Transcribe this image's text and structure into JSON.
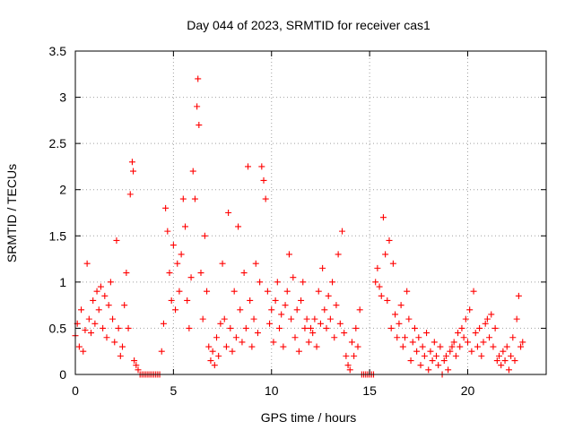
{
  "chart_data": {
    "type": "scatter",
    "title": "Day 044 of 2023, SRMTID for receiver cas1",
    "xlabel": "GPS time / hours",
    "ylabel": "SRMTID / TECUs",
    "xlim": [
      0,
      24
    ],
    "ylim": [
      0,
      3.5
    ],
    "x_ticks": [
      0,
      5,
      10,
      15,
      20
    ],
    "x_tick_labels": [
      "0",
      "5",
      "10",
      "15",
      "20"
    ],
    "y_ticks": [
      0,
      0.5,
      1,
      1.5,
      2,
      2.5,
      3,
      3.5
    ],
    "y_tick_labels": [
      "0",
      "0.5",
      "1",
      "1.5",
      "2",
      "2.5",
      "3",
      "3.5"
    ],
    "grid": true,
    "marker": "+",
    "series": [
      {
        "name": "SRMTID cas1",
        "color": "#ff0000",
        "x": [
          0.0,
          0.1,
          0.2,
          0.3,
          0.4,
          0.5,
          0.6,
          0.7,
          0.8,
          0.9,
          1.0,
          1.1,
          1.2,
          1.3,
          1.4,
          1.5,
          1.6,
          1.7,
          1.8,
          1.9,
          2.0,
          2.1,
          2.2,
          2.3,
          2.4,
          2.5,
          2.6,
          2.7,
          2.8,
          2.9,
          2.95,
          3.0,
          3.1,
          3.2,
          3.3,
          3.4,
          3.5,
          3.6,
          3.7,
          3.8,
          3.9,
          4.0,
          4.1,
          4.2,
          4.3,
          4.4,
          4.5,
          4.6,
          4.7,
          4.8,
          4.9,
          5.0,
          5.1,
          5.2,
          5.3,
          5.4,
          5.5,
          5.6,
          5.7,
          5.8,
          5.9,
          6.0,
          6.1,
          6.2,
          6.25,
          6.3,
          6.4,
          6.5,
          6.6,
          6.7,
          6.8,
          6.9,
          7.0,
          7.1,
          7.2,
          7.3,
          7.4,
          7.5,
          7.6,
          7.7,
          7.8,
          7.9,
          8.0,
          8.1,
          8.2,
          8.3,
          8.4,
          8.5,
          8.6,
          8.7,
          8.8,
          8.9,
          9.0,
          9.1,
          9.2,
          9.3,
          9.4,
          9.5,
          9.6,
          9.7,
          9.8,
          9.9,
          10.0,
          10.1,
          10.2,
          10.3,
          10.4,
          10.5,
          10.6,
          10.7,
          10.8,
          10.9,
          11.0,
          11.1,
          11.2,
          11.3,
          11.4,
          11.5,
          11.6,
          11.7,
          11.8,
          11.9,
          12.0,
          12.1,
          12.2,
          12.3,
          12.4,
          12.5,
          12.6,
          12.7,
          12.8,
          12.9,
          13.0,
          13.1,
          13.2,
          13.3,
          13.4,
          13.5,
          13.6,
          13.7,
          13.8,
          13.9,
          14.0,
          14.1,
          14.2,
          14.3,
          14.4,
          14.5,
          14.6,
          14.7,
          14.8,
          14.9,
          15.0,
          15.1,
          15.2,
          15.3,
          15.4,
          15.5,
          15.6,
          15.7,
          15.8,
          15.9,
          16.0,
          16.1,
          16.2,
          16.3,
          16.4,
          16.5,
          16.6,
          16.7,
          16.8,
          16.9,
          17.0,
          17.1,
          17.2,
          17.3,
          17.4,
          17.5,
          17.6,
          17.7,
          17.8,
          17.9,
          18.0,
          18.1,
          18.2,
          18.3,
          18.4,
          18.5,
          18.6,
          18.7,
          18.8,
          18.9,
          19.0,
          19.1,
          19.2,
          19.3,
          19.4,
          19.5,
          19.6,
          19.7,
          19.8,
          19.9,
          20.0,
          20.1,
          20.2,
          20.3,
          20.4,
          20.5,
          20.6,
          20.7,
          20.8,
          20.9,
          21.0,
          21.1,
          21.2,
          21.3,
          21.4,
          21.5,
          21.6,
          21.7,
          21.8,
          21.9,
          22.0,
          22.1,
          22.2,
          22.3,
          22.4,
          22.5,
          22.6,
          22.7,
          22.8
        ],
        "y": [
          0.42,
          0.55,
          0.3,
          0.7,
          0.25,
          0.48,
          1.2,
          0.6,
          0.45,
          0.8,
          0.55,
          0.9,
          0.7,
          0.95,
          0.5,
          0.85,
          0.4,
          0.75,
          1.0,
          0.6,
          0.35,
          1.45,
          0.5,
          0.2,
          0.3,
          0.75,
          1.1,
          0.5,
          1.95,
          2.3,
          2.2,
          0.15,
          0.1,
          0.05,
          0.0,
          0.0,
          0.0,
          0.0,
          0.0,
          0.0,
          0.0,
          0.0,
          0.0,
          0.0,
          0.0,
          0.25,
          0.55,
          1.8,
          1.55,
          1.1,
          0.8,
          1.4,
          0.7,
          1.2,
          0.9,
          1.3,
          1.9,
          1.6,
          0.8,
          0.5,
          1.05,
          2.2,
          1.9,
          2.9,
          3.2,
          2.7,
          1.1,
          0.6,
          1.5,
          0.9,
          0.3,
          0.15,
          0.25,
          0.1,
          0.4,
          0.2,
          0.55,
          1.2,
          0.6,
          0.3,
          1.75,
          0.5,
          0.25,
          0.9,
          0.4,
          1.6,
          0.7,
          0.35,
          1.1,
          0.5,
          2.25,
          0.8,
          0.3,
          0.6,
          1.2,
          0.45,
          1.0,
          2.25,
          2.1,
          1.9,
          0.9,
          0.55,
          0.7,
          0.35,
          0.8,
          1.0,
          0.5,
          0.65,
          0.3,
          0.75,
          0.9,
          1.3,
          0.6,
          1.05,
          0.4,
          0.7,
          0.25,
          0.8,
          1.0,
          0.5,
          0.6,
          0.35,
          0.5,
          0.45,
          0.6,
          0.3,
          0.9,
          0.55,
          1.15,
          0.7,
          0.5,
          0.85,
          0.6,
          1.0,
          0.4,
          0.75,
          1.3,
          0.55,
          1.55,
          0.45,
          0.2,
          0.1,
          0.05,
          0.35,
          0.2,
          0.5,
          0.3,
          0.7,
          0.0,
          0.0,
          0.0,
          0.0,
          0.0,
          0.0,
          0.0,
          1.0,
          1.15,
          0.95,
          0.85,
          1.7,
          1.3,
          0.8,
          1.45,
          0.5,
          1.2,
          0.65,
          0.4,
          0.55,
          0.75,
          0.3,
          0.4,
          0.9,
          0.6,
          0.15,
          0.35,
          0.5,
          0.25,
          0.4,
          0.1,
          0.3,
          0.2,
          0.45,
          0.05,
          0.25,
          0.15,
          0.35,
          0.2,
          0.1,
          0.3,
          0.0,
          0.15,
          0.2,
          0.05,
          0.25,
          0.3,
          0.35,
          0.2,
          0.45,
          0.3,
          0.5,
          0.4,
          0.6,
          0.35,
          0.7,
          0.25,
          0.9,
          0.45,
          0.3,
          0.5,
          0.2,
          0.35,
          0.55,
          0.6,
          0.4,
          0.65,
          0.3,
          0.5,
          0.15,
          0.2,
          0.1,
          0.25,
          0.15,
          0.3,
          0.05,
          0.2,
          0.4,
          0.15,
          0.6,
          0.85,
          0.3,
          0.35
        ]
      }
    ]
  }
}
